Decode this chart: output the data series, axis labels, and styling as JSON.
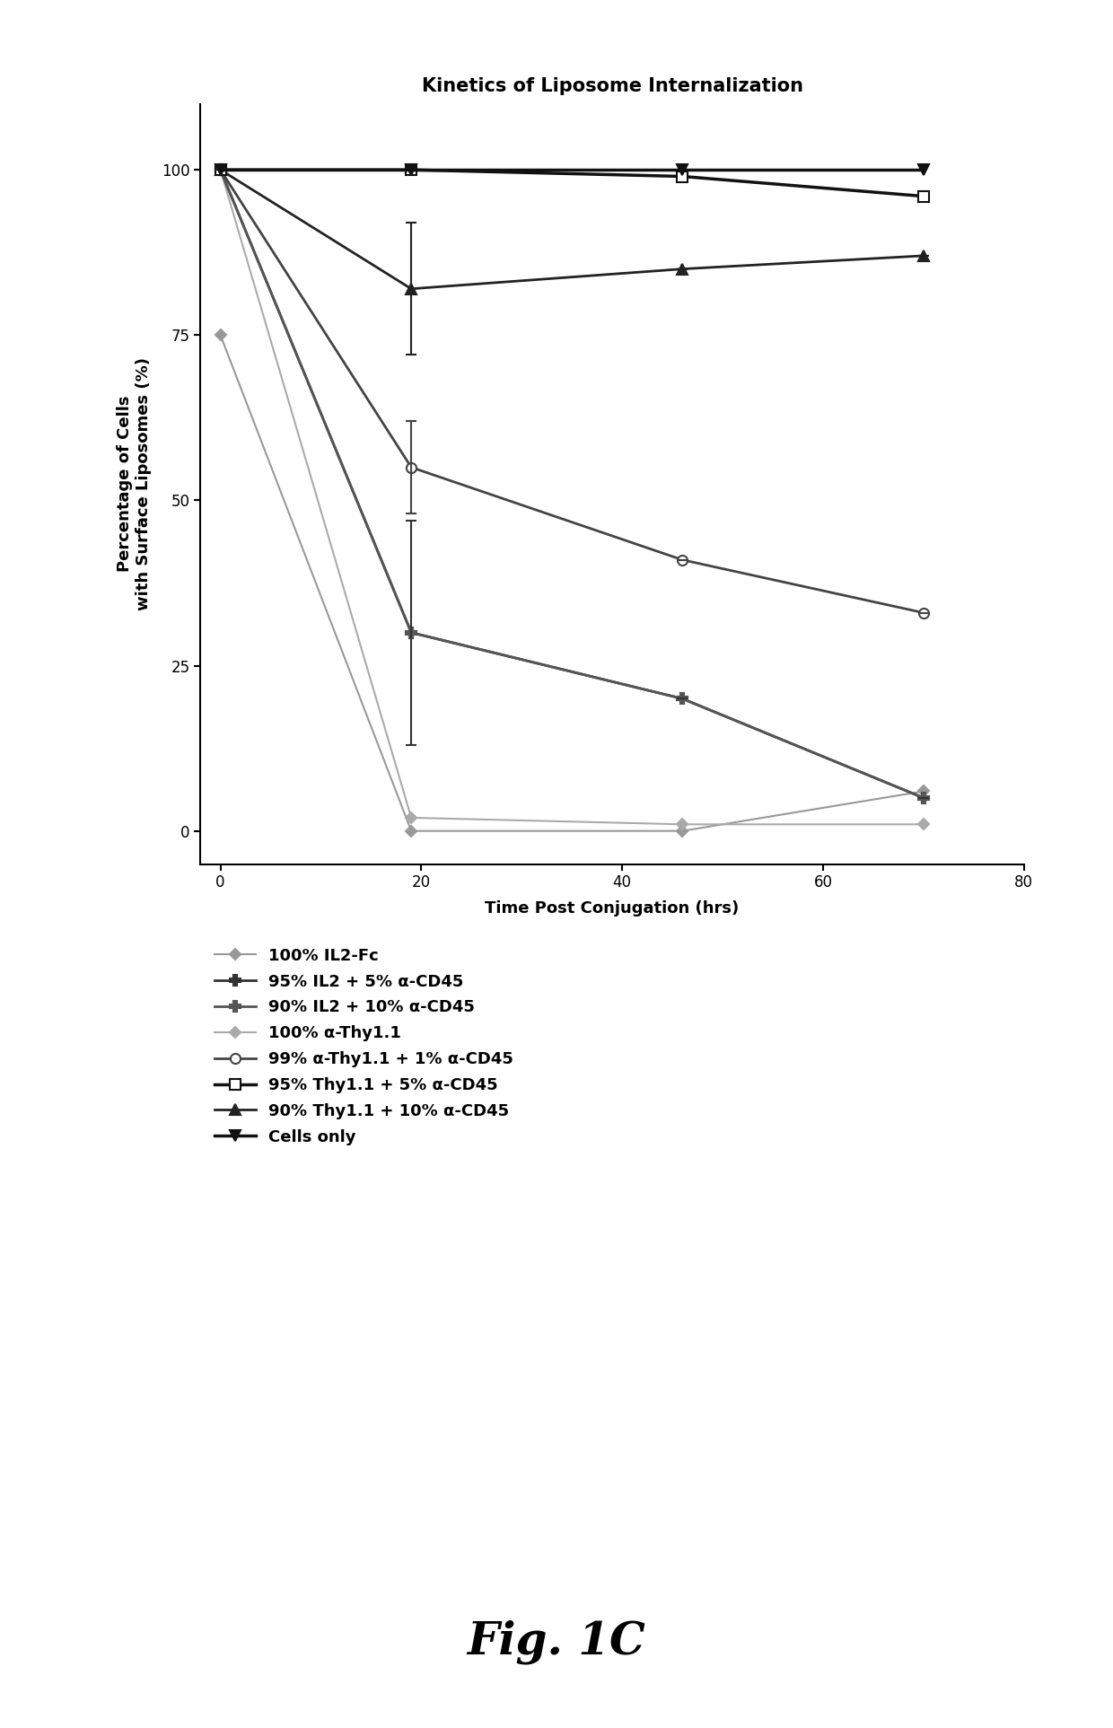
{
  "title": "Kinetics of Liposome Internalization",
  "xlabel": "Time Post Conjugation (hrs)",
  "ylabel": "Percentage of Cells\nwith Surface Liposomes (%)",
  "xlim": [
    -2,
    80
  ],
  "ylim": [
    -5,
    110
  ],
  "xticks": [
    0,
    20,
    40,
    60,
    80
  ],
  "yticks": [
    0,
    25,
    50,
    75,
    100
  ],
  "fig_caption": "Fig. 1C",
  "series": [
    {
      "label": "100% IL2-Fc",
      "x": [
        0,
        19,
        46,
        70
      ],
      "y": [
        75,
        0,
        0,
        6
      ],
      "color": "#999999",
      "marker": "D",
      "markersize": 6,
      "linewidth": 1.5,
      "linestyle": "-",
      "zorder": 3,
      "mfc": "#999999",
      "yerr": [
        0,
        0,
        0,
        0
      ]
    },
    {
      "label": "95% IL2 + 5% α-CD45",
      "x": [
        0,
        19,
        46,
        70
      ],
      "y": [
        100,
        30,
        20,
        5
      ],
      "color": "#333333",
      "marker": "P",
      "markersize": 9,
      "linewidth": 2.0,
      "linestyle": "-",
      "zorder": 4,
      "mfc": "#333333",
      "yerr": [
        0,
        17,
        0,
        0
      ]
    },
    {
      "label": "90% IL2 + 10% α-CD45",
      "x": [
        0,
        19,
        46,
        70
      ],
      "y": [
        100,
        30,
        20,
        5
      ],
      "color": "#555555",
      "marker": "P",
      "markersize": 9,
      "linewidth": 2.0,
      "linestyle": "-",
      "zorder": 4,
      "mfc": "#555555",
      "yerr": [
        0,
        0,
        0,
        0
      ]
    },
    {
      "label": "100% α-Thy1.1",
      "x": [
        0,
        19,
        46,
        70
      ],
      "y": [
        100,
        2,
        1,
        1
      ],
      "color": "#aaaaaa",
      "marker": "D",
      "markersize": 6,
      "linewidth": 1.5,
      "linestyle": "-",
      "zorder": 3,
      "mfc": "#aaaaaa",
      "yerr": [
        0,
        0,
        0,
        0
      ]
    },
    {
      "label": "99% α-Thy1.1 + 1% α-CD45",
      "x": [
        0,
        19,
        46,
        70
      ],
      "y": [
        100,
        55,
        41,
        33
      ],
      "color": "#444444",
      "marker": "o",
      "markersize": 8,
      "linewidth": 2.0,
      "linestyle": "-",
      "zorder": 4,
      "mfc": "white",
      "yerr": [
        0,
        7,
        0,
        0
      ]
    },
    {
      "label": "95% Thy1.1 + 5% α-CD45",
      "x": [
        0,
        19,
        46,
        70
      ],
      "y": [
        100,
        100,
        99,
        96
      ],
      "color": "#111111",
      "marker": "s",
      "markersize": 8,
      "linewidth": 2.5,
      "linestyle": "-",
      "zorder": 5,
      "mfc": "white",
      "yerr": [
        0,
        0,
        0,
        0
      ]
    },
    {
      "label": "90% Thy1.1 + 10% α-CD45",
      "x": [
        0,
        19,
        46,
        70
      ],
      "y": [
        100,
        82,
        85,
        87
      ],
      "color": "#222222",
      "marker": "^",
      "markersize": 9,
      "linewidth": 2.0,
      "linestyle": "-",
      "zorder": 4,
      "mfc": "#222222",
      "yerr": [
        0,
        10,
        0,
        0
      ]
    },
    {
      "label": "Cells only",
      "x": [
        0,
        19,
        46,
        70
      ],
      "y": [
        100,
        100,
        100,
        100
      ],
      "color": "#111111",
      "marker": "v",
      "markersize": 9,
      "linewidth": 2.5,
      "linestyle": "-",
      "zorder": 6,
      "mfc": "#111111",
      "yerr": [
        0,
        0,
        0,
        0
      ]
    }
  ],
  "background_color": "#ffffff",
  "title_fontsize": 15,
  "label_fontsize": 13,
  "tick_fontsize": 12,
  "legend_fontsize": 13,
  "caption_fontsize": 36
}
